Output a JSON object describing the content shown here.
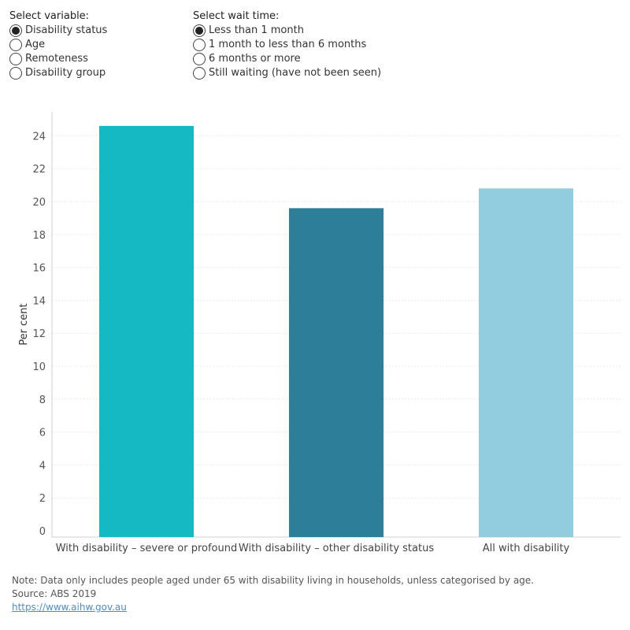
{
  "filters": {
    "variable": {
      "title": "Select variable:",
      "options": [
        "Disability status",
        "Age",
        "Remoteness",
        "Disability group"
      ],
      "selected": 0
    },
    "wait_time": {
      "title": "Select wait time:",
      "options": [
        "Less than 1 month",
        "1 month to less than 6 months",
        "6 months or more",
        "Still waiting (have not been seen)"
      ],
      "selected": 0
    }
  },
  "chart_data": {
    "type": "bar",
    "categories": [
      "With disability – severe or profound",
      "With disability – other disability status",
      "All with disability"
    ],
    "values": [
      24.6,
      19.6,
      20.8
    ],
    "colors": [
      "#14b9c3",
      "#2d7e98",
      "#92cddf"
    ],
    "title": "",
    "xlabel": "",
    "ylabel": "Per cent",
    "ylim": [
      0,
      26
    ],
    "yticks": [
      0,
      2,
      4,
      6,
      8,
      10,
      12,
      14,
      16,
      18,
      20,
      22,
      24
    ],
    "grid": true
  },
  "footer": {
    "note": "Note: Data only includes people aged under 65 with disability living in households, unless categorised by age.",
    "source": "Source: ABS 2019",
    "link": "https://www.aihw.gov.au"
  }
}
